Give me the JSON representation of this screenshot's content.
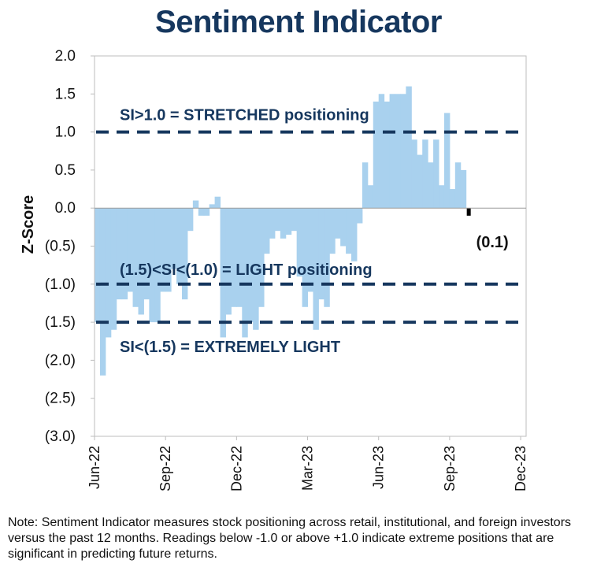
{
  "title": "Sentiment Indicator",
  "note": "Note: Sentiment Indicator measures stock positioning across retail, institutional, and foreign investors versus the past 12 months. Readings below -1.0 or above +1.0 indicate extreme positions that are significant in predicting future returns.",
  "chart_data": {
    "type": "bar",
    "ylabel": "Z-Score",
    "ylim": [
      -3.0,
      2.0
    ],
    "yticks": [
      {
        "value": 2.0,
        "label": "2.0"
      },
      {
        "value": 1.5,
        "label": "1.5"
      },
      {
        "value": 1.0,
        "label": "1.0"
      },
      {
        "value": 0.5,
        "label": "0.5"
      },
      {
        "value": 0.0,
        "label": "0.0"
      },
      {
        "value": -0.5,
        "label": "(0.5)"
      },
      {
        "value": -1.0,
        "label": "(1.0)"
      },
      {
        "value": -1.5,
        "label": "(1.5)"
      },
      {
        "value": -2.0,
        "label": "(2.0)"
      },
      {
        "value": -2.5,
        "label": "(2.5)"
      },
      {
        "value": -3.0,
        "label": "(3.0)"
      }
    ],
    "xticks": [
      {
        "index": 0,
        "label": "Jun-22"
      },
      {
        "index": 13,
        "label": "Sep-22"
      },
      {
        "index": 26,
        "label": "Dec-22"
      },
      {
        "index": 39,
        "label": "Mar-23"
      },
      {
        "index": 52,
        "label": "Jun-23"
      },
      {
        "index": 65,
        "label": "Sep-23"
      },
      {
        "index": 78,
        "label": "Dec-23"
      }
    ],
    "bar_color": "#a9d1ee",
    "grid": false,
    "values": [
      -1.5,
      -2.2,
      -1.7,
      -1.6,
      -1.2,
      -1.2,
      -1.1,
      -1.3,
      -1.4,
      -1.2,
      -1.5,
      -1.5,
      -1.1,
      -1.1,
      -0.8,
      -1.0,
      -1.2,
      -0.3,
      0.1,
      -0.1,
      -0.1,
      0.05,
      0.15,
      -1.7,
      -1.4,
      -1.3,
      -1.3,
      -1.7,
      -1.5,
      -1.6,
      -1.3,
      -0.6,
      -0.4,
      -0.3,
      -0.4,
      -0.35,
      -0.3,
      -0.9,
      -1.3,
      -1.1,
      -1.6,
      -1.2,
      -1.3,
      -0.6,
      -0.4,
      -0.5,
      -0.6,
      -0.7,
      -0.2,
      0.6,
      0.3,
      1.4,
      1.5,
      1.4,
      1.5,
      1.5,
      1.5,
      1.6,
      0.9,
      0.7,
      0.9,
      0.6,
      0.9,
      0.3,
      1.25,
      0.25,
      0.6,
      0.5,
      -0.1
    ],
    "reference_lines": [
      {
        "value": 1.0,
        "color": "#16375e",
        "label": "SI>1.0 = STRETCHED positioning"
      },
      {
        "value": -1.0,
        "color": "#16375e",
        "label": "(1.5)<SI<(1.0) = LIGHT positioning"
      },
      {
        "value": -1.5,
        "color": "#16375e",
        "label": "SI<(1.5) = EXTREMELY LIGHT"
      }
    ],
    "callout": {
      "label": "(0.1)",
      "value": -0.1
    },
    "last_bar_color": "#000000"
  }
}
